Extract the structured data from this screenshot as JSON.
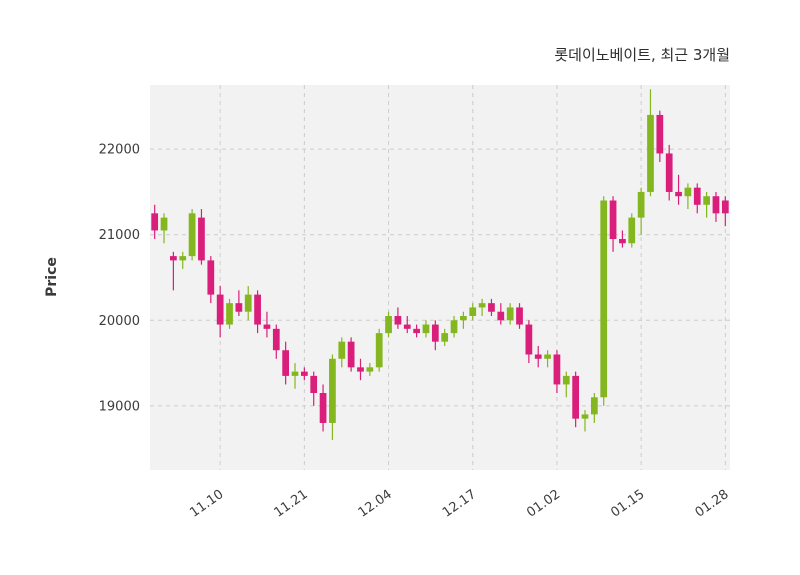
{
  "title": "롯데이노베이트, 최근 3개월",
  "ylabel": "Price",
  "chart_data": {
    "type": "candlestick",
    "title": "롯데이노베이트, 최근 3개월",
    "ylabel": "Price",
    "xlabel": "",
    "ylim": [
      18250,
      22750
    ],
    "yticks": [
      19000,
      20000,
      21000,
      22000
    ],
    "xtick_labels": [
      "11.10",
      "11.21",
      "12.04",
      "12.17",
      "01.02",
      "01.15",
      "01.28"
    ],
    "grid": true,
    "legend": "none",
    "up_color": "#84b71f",
    "down_color": "#d91e7c",
    "plot_bg_color": "#f2f2f2",
    "grid_color": "#cccccc",
    "text_color": "#3c3c3c",
    "dates": [
      "10.31",
      "11.01",
      "11.04",
      "11.05",
      "11.06",
      "11.07",
      "11.08",
      "11.10",
      "11.11",
      "11.12",
      "11.13",
      "11.14",
      "11.15",
      "11.18",
      "11.19",
      "11.20",
      "11.21",
      "11.22",
      "11.25",
      "11.26",
      "11.27",
      "11.28",
      "11.29",
      "12.02",
      "12.03",
      "12.04",
      "12.05",
      "12.06",
      "12.09",
      "12.10",
      "12.11",
      "12.12",
      "12.13",
      "12.16",
      "12.17",
      "12.18",
      "12.19",
      "12.20",
      "12.23",
      "12.24",
      "12.26",
      "12.27",
      "12.30",
      "01.02",
      "01.03",
      "01.06",
      "01.07",
      "01.08",
      "01.09",
      "01.10",
      "01.13",
      "01.14",
      "01.15",
      "01.16",
      "01.17",
      "01.20",
      "01.21",
      "01.22",
      "01.23",
      "01.24",
      "01.27",
      "01.28"
    ],
    "ohlc": [
      [
        21250,
        21350,
        20950,
        21050
      ],
      [
        21050,
        21250,
        20900,
        21200
      ],
      [
        20750,
        20800,
        20350,
        20700
      ],
      [
        20700,
        20800,
        20600,
        20750
      ],
      [
        20750,
        21300,
        20700,
        21250
      ],
      [
        21200,
        21300,
        20650,
        20700
      ],
      [
        20700,
        20750,
        20200,
        20300
      ],
      [
        20300,
        20400,
        19800,
        19950
      ],
      [
        19950,
        20250,
        19900,
        20200
      ],
      [
        20200,
        20350,
        20050,
        20100
      ],
      [
        20100,
        20400,
        20000,
        20300
      ],
      [
        20300,
        20350,
        19850,
        19950
      ],
      [
        19950,
        20100,
        19800,
        19900
      ],
      [
        19900,
        19950,
        19550,
        19650
      ],
      [
        19650,
        19750,
        19250,
        19350
      ],
      [
        19350,
        19500,
        19200,
        19400
      ],
      [
        19400,
        19450,
        19300,
        19350
      ],
      [
        19350,
        19400,
        19000,
        19150
      ],
      [
        19150,
        19250,
        18700,
        18800
      ],
      [
        18800,
        19600,
        18600,
        19550
      ],
      [
        19550,
        19800,
        19450,
        19750
      ],
      [
        19750,
        19800,
        19400,
        19450
      ],
      [
        19450,
        19550,
        19300,
        19400
      ],
      [
        19400,
        19500,
        19350,
        19450
      ],
      [
        19450,
        19900,
        19400,
        19850
      ],
      [
        19850,
        20100,
        19800,
        20050
      ],
      [
        20050,
        20150,
        19900,
        19950
      ],
      [
        19950,
        20050,
        19850,
        19900
      ],
      [
        19900,
        19950,
        19800,
        19850
      ],
      [
        19850,
        20000,
        19800,
        19950
      ],
      [
        19950,
        20000,
        19650,
        19750
      ],
      [
        19750,
        19900,
        19700,
        19850
      ],
      [
        19850,
        20050,
        19800,
        20000
      ],
      [
        20000,
        20100,
        19900,
        20050
      ],
      [
        20050,
        20200,
        20000,
        20150
      ],
      [
        20150,
        20250,
        20050,
        20200
      ],
      [
        20200,
        20250,
        20050,
        20100
      ],
      [
        20100,
        20200,
        19950,
        20000
      ],
      [
        20000,
        20200,
        19950,
        20150
      ],
      [
        20150,
        20200,
        19900,
        19950
      ],
      [
        19950,
        20000,
        19500,
        19600
      ],
      [
        19600,
        19700,
        19450,
        19550
      ],
      [
        19550,
        19650,
        19450,
        19600
      ],
      [
        19600,
        19650,
        19150,
        19250
      ],
      [
        19250,
        19400,
        19100,
        19350
      ],
      [
        19350,
        19400,
        18750,
        18850
      ],
      [
        18850,
        18950,
        18700,
        18900
      ],
      [
        18900,
        19150,
        18800,
        19100
      ],
      [
        19100,
        21450,
        19000,
        21400
      ],
      [
        21400,
        21450,
        20800,
        20950
      ],
      [
        20950,
        21050,
        20850,
        20900
      ],
      [
        20900,
        21250,
        20850,
        21200
      ],
      [
        21200,
        21550,
        21000,
        21500
      ],
      [
        21500,
        22700,
        21450,
        22400
      ],
      [
        22400,
        22450,
        21850,
        21950
      ],
      [
        21950,
        22050,
        21400,
        21500
      ],
      [
        21500,
        21700,
        21350,
        21450
      ],
      [
        21450,
        21600,
        21300,
        21550
      ],
      [
        21550,
        21600,
        21250,
        21350
      ],
      [
        21350,
        21500,
        21200,
        21450
      ],
      [
        21450,
        21500,
        21150,
        21250
      ],
      [
        21400,
        21450,
        21100,
        21250
      ]
    ]
  }
}
